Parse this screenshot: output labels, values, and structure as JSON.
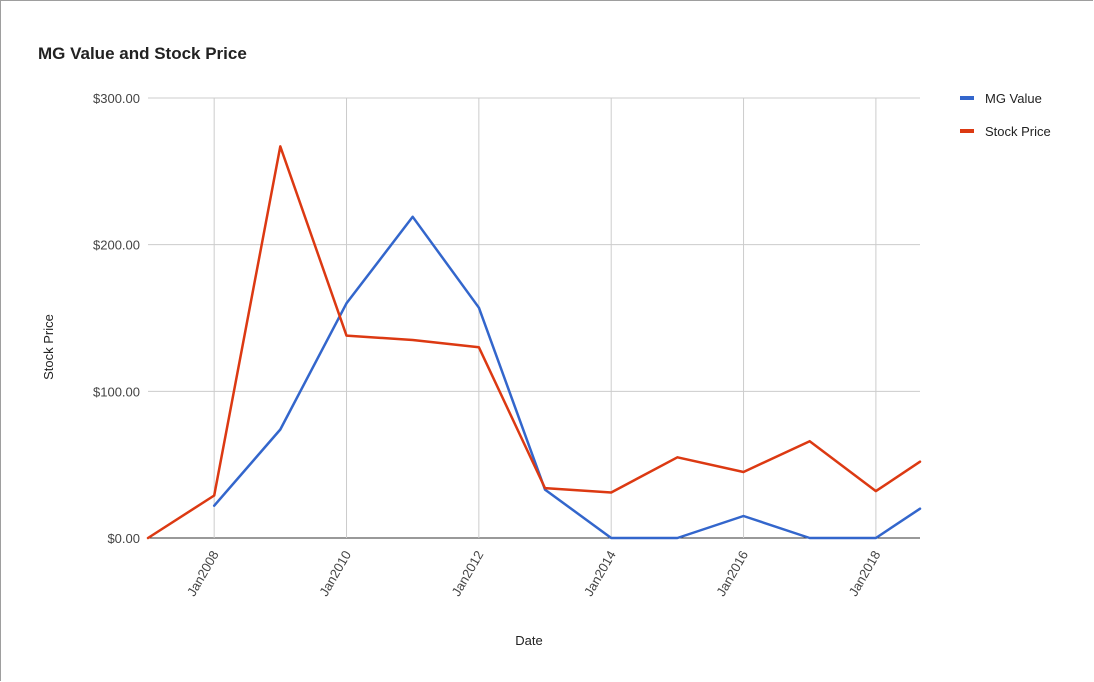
{
  "chart_data": {
    "type": "line",
    "title": "MG Value and Stock Price",
    "xlabel": "Date",
    "ylabel": "Stock Price",
    "x_range": [
      "2007-01",
      "2018-09"
    ],
    "ylim": [
      0,
      300
    ],
    "y_ticks": [
      {
        "value": 0,
        "label": "$0.00"
      },
      {
        "value": 100,
        "label": "$100.00"
      },
      {
        "value": 200,
        "label": "$200.00"
      },
      {
        "value": 300,
        "label": "$300.00"
      }
    ],
    "x_ticks": [
      {
        "value": "2008-01",
        "label": "Jan2008"
      },
      {
        "value": "2010-01",
        "label": "Jan2010"
      },
      {
        "value": "2012-01",
        "label": "Jan2012"
      },
      {
        "value": "2014-01",
        "label": "Jan2014"
      },
      {
        "value": "2016-01",
        "label": "Jan2016"
      },
      {
        "value": "2018-01",
        "label": "Jan2018"
      }
    ],
    "grid": true,
    "legend_position": "right-top",
    "series": [
      {
        "name": "MG Value",
        "color": "#3366cc",
        "points": [
          {
            "x": "2008-01",
            "y": 22
          },
          {
            "x": "2009-01",
            "y": 74
          },
          {
            "x": "2010-01",
            "y": 160
          },
          {
            "x": "2011-01",
            "y": 219
          },
          {
            "x": "2012-01",
            "y": 157
          },
          {
            "x": "2013-01",
            "y": 33
          },
          {
            "x": "2014-01",
            "y": 0
          },
          {
            "x": "2015-01",
            "y": 0
          },
          {
            "x": "2016-01",
            "y": 15
          },
          {
            "x": "2017-01",
            "y": 0
          },
          {
            "x": "2018-01",
            "y": 0
          },
          {
            "x": "2018-09",
            "y": 20
          }
        ]
      },
      {
        "name": "Stock Price",
        "color": "#dc3912",
        "points": [
          {
            "x": "2007-01",
            "y": 0
          },
          {
            "x": "2008-01",
            "y": 29
          },
          {
            "x": "2009-01",
            "y": 267
          },
          {
            "x": "2010-01",
            "y": 138
          },
          {
            "x": "2011-01",
            "y": 135
          },
          {
            "x": "2012-01",
            "y": 130
          },
          {
            "x": "2013-01",
            "y": 34
          },
          {
            "x": "2014-01",
            "y": 31
          },
          {
            "x": "2015-01",
            "y": 55
          },
          {
            "x": "2016-01",
            "y": 45
          },
          {
            "x": "2017-01",
            "y": 66
          },
          {
            "x": "2018-01",
            "y": 32
          },
          {
            "x": "2018-09",
            "y": 52
          }
        ]
      }
    ]
  }
}
